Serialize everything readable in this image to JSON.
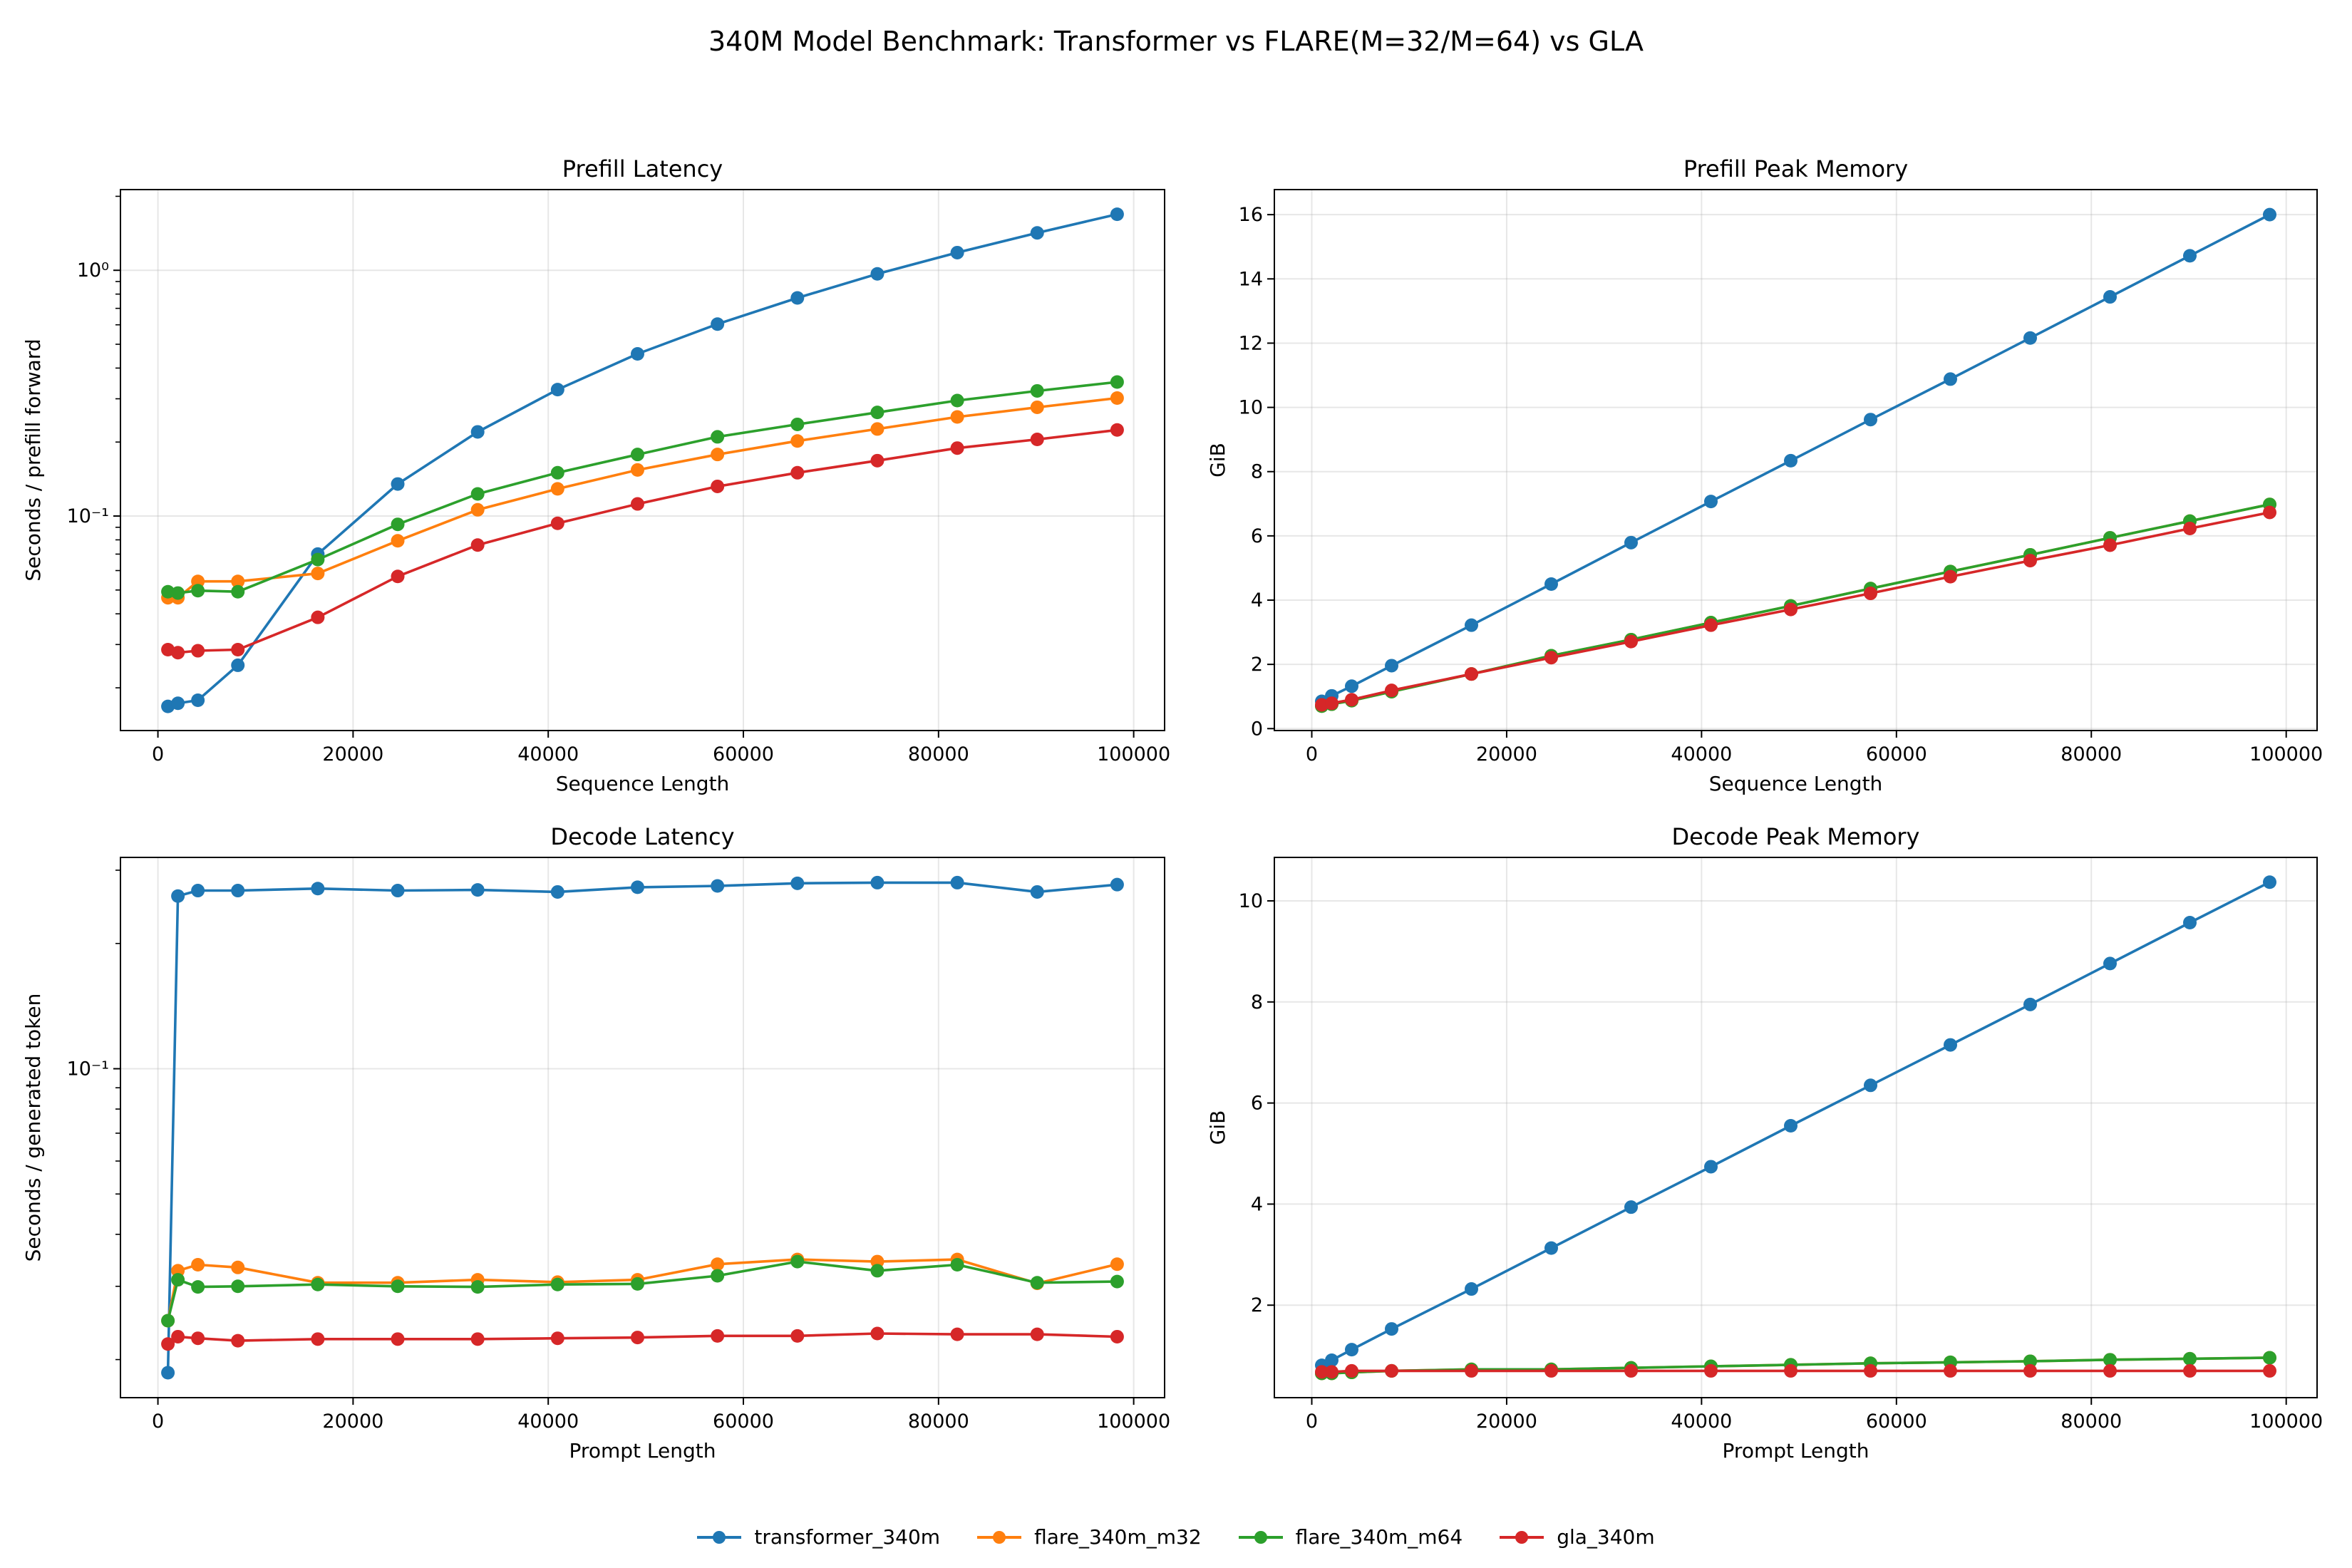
{
  "title": "340M Model Benchmark: Transformer vs FLARE(M=32/M=64) vs GLA",
  "legend": [
    {
      "name": "transformer_340m",
      "color": "#1f77b4"
    },
    {
      "name": "flare_340m_m32",
      "color": "#ff7f0e"
    },
    {
      "name": "flare_340m_m64",
      "color": "#2ca02c"
    },
    {
      "name": "gla_340m",
      "color": "#d62728"
    }
  ],
  "chart_data": [
    {
      "type": "line",
      "title": "Prefill Latency",
      "xlabel": "Sequence Length",
      "ylabel": "Seconds / prefill forward",
      "yscale": "log",
      "xlim": [
        -3840,
        103168
      ],
      "ylim": [
        0.0134,
        2.13
      ],
      "grid": true,
      "xticks": [
        0,
        20000,
        40000,
        60000,
        80000,
        100000
      ],
      "xtick_labels": [
        "0",
        "20000",
        "40000",
        "60000",
        "80000",
        "100000"
      ],
      "yticks": [
        0.1,
        1
      ],
      "ytick_labels": [
        "10⁻¹",
        "10⁰"
      ],
      "x": [
        1024,
        2048,
        4096,
        8192,
        16384,
        24576,
        32768,
        40960,
        49152,
        57344,
        65536,
        73728,
        81920,
        90112,
        98304
      ],
      "series": [
        {
          "name": "transformer_340m",
          "values": [
            0.0168,
            0.0173,
            0.0178,
            0.0247,
            0.07,
            0.135,
            0.22,
            0.327,
            0.457,
            0.604,
            0.772,
            0.967,
            1.18,
            1.42,
            1.69
          ]
        },
        {
          "name": "flare_340m_m32",
          "values": [
            0.0465,
            0.0465,
            0.0542,
            0.0542,
            0.0584,
            0.0793,
            0.106,
            0.129,
            0.154,
            0.178,
            0.202,
            0.226,
            0.253,
            0.277,
            0.302
          ]
        },
        {
          "name": "flare_340m_m64",
          "values": [
            0.0492,
            0.0486,
            0.0497,
            0.0492,
            0.0665,
            0.0925,
            0.123,
            0.15,
            0.178,
            0.21,
            0.236,
            0.264,
            0.295,
            0.323,
            0.351
          ]
        },
        {
          "name": "gla_340m",
          "values": [
            0.0286,
            0.0278,
            0.0283,
            0.0286,
            0.0387,
            0.0568,
            0.0762,
            0.0934,
            0.112,
            0.132,
            0.15,
            0.168,
            0.189,
            0.205,
            0.224
          ]
        }
      ]
    },
    {
      "type": "line",
      "title": "Prefill Peak Memory",
      "xlabel": "Sequence Length",
      "ylabel": "GiB",
      "yscale": "linear",
      "xlim": [
        -3840,
        103168
      ],
      "ylim": [
        -0.06,
        16.78
      ],
      "grid": true,
      "xticks": [
        0,
        20000,
        40000,
        60000,
        80000,
        100000
      ],
      "xtick_labels": [
        "0",
        "20000",
        "40000",
        "60000",
        "80000",
        "100000"
      ],
      "yticks": [
        0,
        2,
        4,
        6,
        8,
        10,
        12,
        14,
        16
      ],
      "ytick_labels": [
        "0",
        "2",
        "4",
        "6",
        "8",
        "10",
        "12",
        "14",
        "16"
      ],
      "x": [
        1024,
        2048,
        4096,
        8192,
        16384,
        24576,
        32768,
        40960,
        49152,
        57344,
        65536,
        73728,
        81920,
        90112,
        98304
      ],
      "series": [
        {
          "name": "transformer_340m",
          "values": [
            0.85,
            1.02,
            1.32,
            1.96,
            3.22,
            4.5,
            5.79,
            7.07,
            8.34,
            9.62,
            10.88,
            12.16,
            13.44,
            14.72,
            16.0
          ]
        },
        {
          "name": "flare_340m_m32",
          "values": [
            0.7,
            0.76,
            0.87,
            1.15,
            1.7,
            2.27,
            2.77,
            3.3,
            3.82,
            4.36,
            4.89,
            5.41,
            5.94,
            6.46,
            6.98
          ]
        },
        {
          "name": "flare_340m_m64",
          "values": [
            0.7,
            0.76,
            0.87,
            1.15,
            1.7,
            2.27,
            2.77,
            3.3,
            3.82,
            4.36,
            4.89,
            5.41,
            5.94,
            6.46,
            6.98
          ]
        },
        {
          "name": "gla_340m",
          "values": [
            0.74,
            0.79,
            0.9,
            1.19,
            1.7,
            2.21,
            2.71,
            3.22,
            3.71,
            4.21,
            4.73,
            5.23,
            5.71,
            6.23,
            6.73
          ]
        }
      ]
    },
    {
      "type": "line",
      "title": "Decode Latency",
      "xlabel": "Prompt Length",
      "ylabel": "Seconds / generated token",
      "yscale": "log",
      "xlim": [
        -3840,
        103168
      ],
      "ylim": [
        0.0162,
        0.322
      ],
      "grid": true,
      "xticks": [
        0,
        20000,
        40000,
        60000,
        80000,
        100000
      ],
      "xtick_labels": [
        "0",
        "20000",
        "40000",
        "60000",
        "80000",
        "100000"
      ],
      "yticks": [
        0.1
      ],
      "ytick_labels": [
        "10⁻¹"
      ],
      "x": [
        1024,
        2048,
        4096,
        8192,
        16384,
        24576,
        32768,
        40960,
        49152,
        57344,
        65536,
        73728,
        81920,
        90112,
        98304
      ],
      "series": [
        {
          "name": "transformer_340m",
          "values": [
            0.0186,
            0.26,
            0.268,
            0.268,
            0.271,
            0.268,
            0.269,
            0.266,
            0.273,
            0.275,
            0.279,
            0.28,
            0.28,
            0.266,
            0.277
          ]
        },
        {
          "name": "flare_340m_m32",
          "values": [
            0.0248,
            0.0327,
            0.0338,
            0.0333,
            0.0306,
            0.0306,
            0.0311,
            0.0307,
            0.0311,
            0.0339,
            0.0348,
            0.0344,
            0.0348,
            0.0305,
            0.0339
          ]
        },
        {
          "name": "flare_340m_m64",
          "values": [
            0.0248,
            0.0311,
            0.0299,
            0.03,
            0.0303,
            0.03,
            0.0299,
            0.0303,
            0.0304,
            0.0318,
            0.0344,
            0.0327,
            0.0338,
            0.0306,
            0.0308
          ]
        },
        {
          "name": "gla_340m",
          "values": [
            0.0218,
            0.0227,
            0.0225,
            0.0222,
            0.0224,
            0.0224,
            0.0224,
            0.0225,
            0.0226,
            0.0228,
            0.0228,
            0.0231,
            0.023,
            0.023,
            0.0227
          ]
        }
      ]
    },
    {
      "type": "line",
      "title": "Decode Peak Memory",
      "xlabel": "Prompt Length",
      "ylabel": "GiB",
      "yscale": "linear",
      "xlim": [
        -3840,
        103168
      ],
      "ylim": [
        0.17,
        10.86
      ],
      "grid": true,
      "xticks": [
        0,
        20000,
        40000,
        60000,
        80000,
        100000
      ],
      "xtick_labels": [
        "0",
        "20000",
        "40000",
        "60000",
        "80000",
        "100000"
      ],
      "yticks": [
        2,
        4,
        6,
        8,
        10
      ],
      "ytick_labels": [
        "2",
        "4",
        "6",
        "8",
        "10"
      ],
      "x": [
        1024,
        2048,
        4096,
        8192,
        16384,
        24576,
        32768,
        40960,
        49152,
        57344,
        65536,
        73728,
        81920,
        90112,
        98304
      ],
      "series": [
        {
          "name": "transformer_340m",
          "values": [
            0.81,
            0.91,
            1.12,
            1.53,
            2.32,
            3.13,
            3.94,
            4.74,
            5.55,
            6.35,
            7.15,
            7.95,
            8.76,
            9.57,
            10.37
          ]
        },
        {
          "name": "flare_340m_m32",
          "values": [
            0.65,
            0.65,
            0.67,
            0.7,
            0.73,
            0.73,
            0.76,
            0.79,
            0.82,
            0.85,
            0.87,
            0.89,
            0.92,
            0.94,
            0.96
          ]
        },
        {
          "name": "flare_340m_m64",
          "values": [
            0.65,
            0.65,
            0.67,
            0.7,
            0.73,
            0.73,
            0.76,
            0.79,
            0.82,
            0.85,
            0.87,
            0.89,
            0.92,
            0.94,
            0.96
          ]
        },
        {
          "name": "gla_340m",
          "values": [
            0.68,
            0.68,
            0.7,
            0.7,
            0.7,
            0.7,
            0.7,
            0.7,
            0.7,
            0.7,
            0.7,
            0.7,
            0.7,
            0.7,
            0.7
          ]
        }
      ]
    }
  ]
}
